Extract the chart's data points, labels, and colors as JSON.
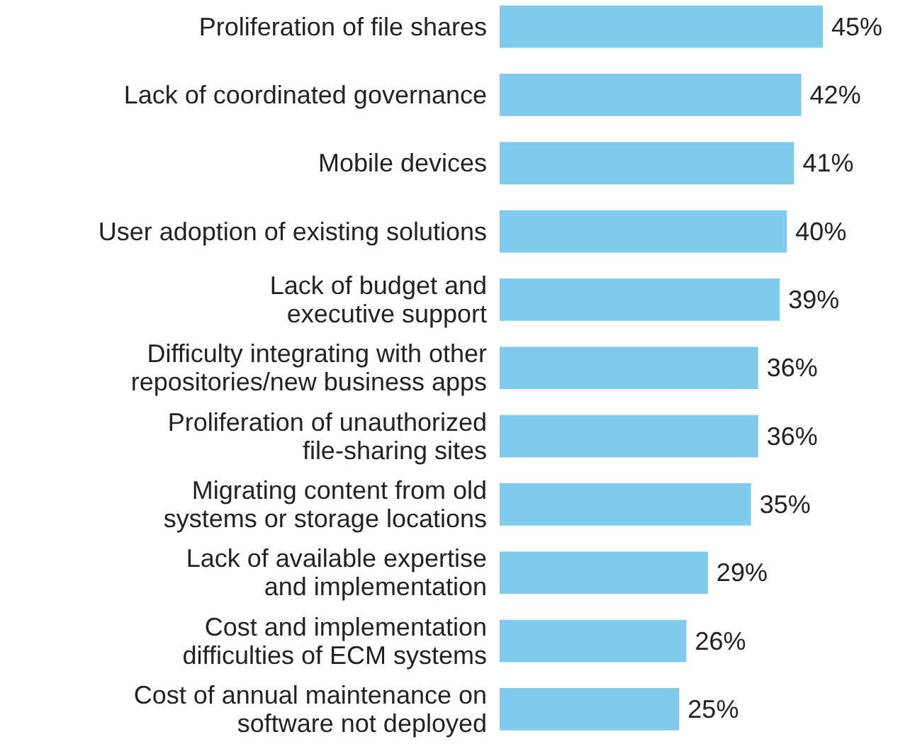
{
  "chart_data": {
    "type": "bar",
    "orientation": "horizontal",
    "categories": [
      "Proliferation of file shares",
      "Lack of coordinated governance",
      "Mobile devices",
      "User adoption of existing solutions",
      "Lack of budget and\nexecutive support",
      "Difficulty integrating with other\nrepositories/new business apps",
      "Proliferation of unauthorized\nfile-sharing sites",
      "Migrating content from old\nsystems or storage locations",
      "Lack of available expertise\nand implementation",
      "Cost and implementation\ndifficulties of ECM systems",
      "Cost of annual maintenance on\nsoftware not deployed"
    ],
    "values": [
      45,
      42,
      41,
      40,
      39,
      36,
      36,
      35,
      29,
      26,
      25
    ],
    "value_labels": [
      "45%",
      "42%",
      "41%",
      "40%",
      "39%",
      "36%",
      "36%",
      "35%",
      "29%",
      "26%",
      "25%"
    ],
    "color": "#80cbec"
  }
}
